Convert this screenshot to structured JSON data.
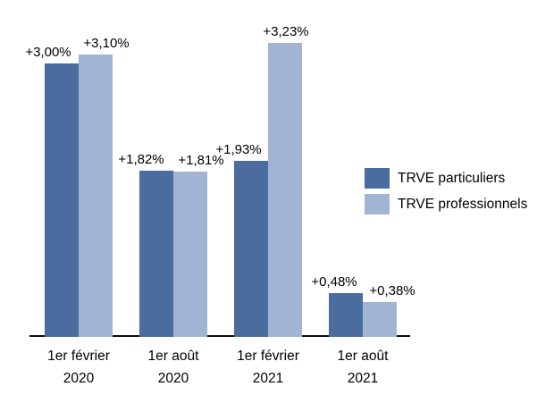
{
  "chart_data": {
    "type": "bar",
    "title": "",
    "xlabel": "",
    "ylabel": "",
    "grid": false,
    "legend_position": "right",
    "ylim": [
      0,
      3.6
    ],
    "categories": [
      [
        "1er février",
        "2020"
      ],
      [
        "1er août",
        "2020"
      ],
      [
        "1er février",
        "2021"
      ],
      [
        "1er août",
        "2021"
      ]
    ],
    "series": [
      {
        "name": "TRVE particuliers",
        "color": "#4A6C9E",
        "values": [
          3.0,
          1.82,
          1.93,
          0.48
        ],
        "labels": [
          "+3,00%",
          "+1,82%",
          "+1,93%",
          "+0,48%"
        ]
      },
      {
        "name": "TRVE professionnels",
        "color": "#A2B4D4",
        "values": [
          3.1,
          1.81,
          3.23,
          0.38
        ],
        "labels": [
          "+3,10%",
          "+1,81%",
          "+3,23%",
          "+0,38%"
        ]
      }
    ],
    "axis_color": "#0d0d0d",
    "text_color": "#000000"
  }
}
